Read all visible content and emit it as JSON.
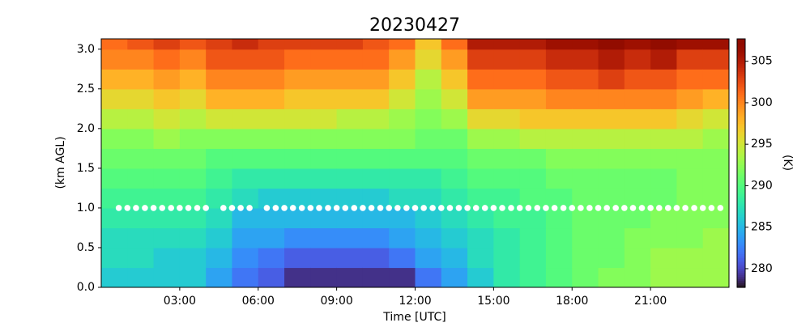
{
  "chart_data": {
    "type": "heatmap",
    "title": "20230427",
    "xlabel": "Time [UTC]",
    "ylabel": "(km AGL)",
    "colorbar_label": "(K)",
    "x": [
      0,
      1,
      2,
      3,
      4,
      5,
      6,
      7,
      8,
      9,
      10,
      11,
      12,
      13,
      14,
      15,
      16,
      17,
      18,
      19,
      20,
      21,
      22,
      23
    ],
    "y": [
      0,
      0.25,
      0.5,
      0.75,
      1.0,
      1.25,
      1.5,
      1.75,
      2.0,
      2.25,
      2.5,
      2.75,
      3.0
    ],
    "z": [
      [
        286,
        287,
        287,
        288,
        289,
        290,
        291,
        292,
        294,
        296,
        298,
        300,
        301
      ],
      [
        286,
        287,
        287,
        288,
        289,
        290,
        291,
        292,
        294,
        296,
        298,
        300,
        302
      ],
      [
        286,
        286,
        287,
        288,
        289,
        290,
        291,
        293,
        295,
        297,
        299,
        301,
        303
      ],
      [
        286,
        286,
        287,
        288,
        289,
        290,
        291,
        292,
        294,
        296,
        298,
        300,
        302
      ],
      [
        284,
        285,
        286,
        287,
        288,
        289,
        290,
        292,
        295,
        298,
        300,
        302,
        303
      ],
      [
        282,
        283,
        284,
        285,
        287,
        288,
        290,
        292,
        295,
        298,
        300,
        302,
        304
      ],
      [
        281,
        282,
        284,
        285,
        286,
        288,
        290,
        292,
        295,
        298,
        300,
        302,
        303
      ],
      [
        279,
        281,
        283,
        285,
        286,
        288,
        290,
        292,
        295,
        297,
        299,
        301,
        303
      ],
      [
        279,
        281,
        283,
        285,
        286,
        288,
        290,
        292,
        295,
        297,
        299,
        301,
        303
      ],
      [
        279,
        281,
        283,
        285,
        286,
        288,
        290,
        292,
        294,
        297,
        299,
        301,
        303
      ],
      [
        279,
        281,
        283,
        285,
        286,
        288,
        290,
        292,
        294,
        297,
        299,
        301,
        302
      ],
      [
        279,
        282,
        284,
        285,
        287,
        288,
        290,
        292,
        293,
        295,
        297,
        299,
        301
      ],
      [
        282,
        284,
        285,
        286,
        287,
        288,
        290,
        291,
        292,
        293,
        294,
        296,
        297
      ],
      [
        284,
        285,
        286,
        287,
        288,
        289,
        290,
        291,
        293,
        295,
        297,
        299,
        301
      ],
      [
        286,
        287,
        287,
        288,
        289,
        290,
        291,
        293,
        296,
        299,
        301,
        303,
        305
      ],
      [
        288,
        288,
        288,
        289,
        289,
        290,
        291,
        293,
        296,
        299,
        301,
        303,
        305
      ],
      [
        289,
        289,
        289,
        289,
        290,
        290,
        291,
        294,
        297,
        299,
        301,
        303,
        305
      ],
      [
        290,
        290,
        290,
        290,
        290,
        291,
        292,
        294,
        297,
        300,
        302,
        304,
        306
      ],
      [
        291,
        291,
        291,
        291,
        291,
        291,
        292,
        294,
        297,
        300,
        302,
        304,
        306
      ],
      [
        292,
        291,
        291,
        291,
        291,
        291,
        292,
        294,
        297,
        300,
        303,
        305,
        307
      ],
      [
        292,
        292,
        292,
        291,
        291,
        291,
        292,
        294,
        297,
        300,
        302,
        304,
        306
      ],
      [
        293,
        293,
        292,
        292,
        291,
        291,
        292,
        294,
        297,
        300,
        302,
        305,
        307
      ],
      [
        293,
        293,
        292,
        292,
        292,
        292,
        292,
        294,
        296,
        299,
        301,
        303,
        306
      ],
      [
        293,
        293,
        293,
        292,
        292,
        292,
        292,
        293,
        295,
        298,
        301,
        303,
        306
      ]
    ],
    "markers": {
      "color": "#ffffff",
      "x": [
        0.67,
        1,
        1.33,
        1.67,
        2,
        2.33,
        2.67,
        3,
        3.33,
        3.67,
        4,
        4.67,
        5,
        5.33,
        5.67,
        6.33,
        6.67,
        7,
        7.33,
        7.67,
        8,
        8.33,
        8.67,
        9,
        9.33,
        9.67,
        10,
        10.33,
        10.67,
        11,
        11.33,
        11.67,
        12,
        12.33,
        12.67,
        13,
        13.33,
        13.67,
        14,
        14.33,
        14.67,
        15,
        15.33,
        15.67,
        16,
        16.33,
        16.67,
        17,
        17.33,
        17.67,
        18,
        18.33,
        18.67,
        19,
        19.33,
        19.67,
        20,
        20.33,
        20.67,
        21,
        21.33,
        21.67,
        22,
        22.33,
        22.67,
        23,
        23.33,
        23.67
      ],
      "y": [
        1,
        1,
        1,
        1,
        1,
        1,
        1,
        1,
        1,
        1,
        1,
        1,
        1,
        1,
        1,
        1,
        1,
        1,
        1,
        1,
        1,
        1,
        1,
        1,
        1,
        1,
        1,
        1,
        1,
        1,
        1,
        1,
        1,
        1,
        1,
        1,
        1,
        1,
        1,
        1,
        1,
        1,
        1,
        1,
        1,
        1,
        1,
        1,
        1,
        1,
        1,
        1,
        1,
        1,
        1,
        1,
        1,
        1,
        1,
        1,
        1,
        1,
        1,
        1,
        1,
        1,
        1,
        1
      ]
    },
    "xlim": [
      0,
      24
    ],
    "ylim": [
      0,
      3.13
    ],
    "clim": [
      277.75,
      307.7
    ],
    "colormap": "turbo",
    "xticks": [
      {
        "value": 3,
        "label": "03:00"
      },
      {
        "value": 6,
        "label": "06:00"
      },
      {
        "value": 9,
        "label": "09:00"
      },
      {
        "value": 12,
        "label": "12:00"
      },
      {
        "value": 15,
        "label": "15:00"
      },
      {
        "value": 18,
        "label": "18:00"
      },
      {
        "value": 21,
        "label": "21:00"
      }
    ],
    "yticks": [
      {
        "value": 0,
        "label": "0.0"
      },
      0.5,
      {
        "value": 1,
        "label": "1.0"
      },
      1.5,
      {
        "value": 2,
        "label": "2.0"
      },
      2.5,
      {
        "value": 3,
        "label": "3.0"
      }
    ],
    "cticks": [
      280,
      285,
      290,
      295,
      300,
      305
    ]
  }
}
